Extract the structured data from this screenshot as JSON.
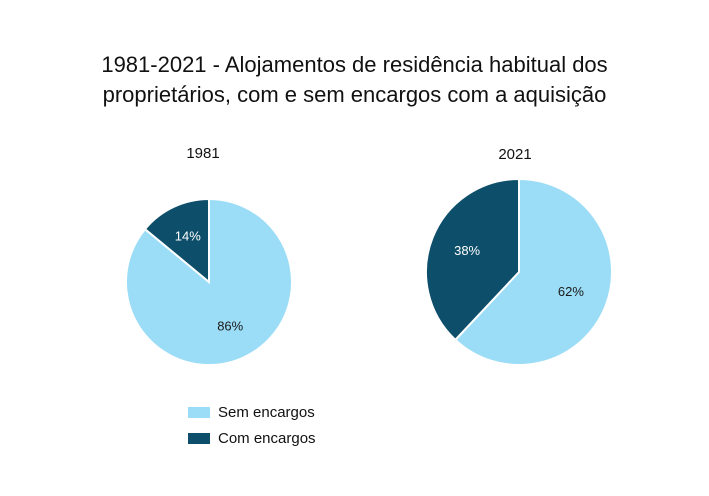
{
  "chart_data": {
    "type": "pie",
    "title_lines": [
      "1981-2021  - Alojamentos de residência habitual dos",
      "proprietários, com e sem encargos com a aquisição"
    ],
    "legend": [
      {
        "label": "Sem encargos",
        "color": "#9bdcf6"
      },
      {
        "label": "Com encargos",
        "color": "#0d4e6a"
      }
    ],
    "legend_position": "bottom-left",
    "pies": [
      {
        "title": "1981",
        "slices": [
          {
            "name": "Sem encargos",
            "value": 86,
            "label": "86%"
          },
          {
            "name": "Com encargos",
            "value": 14,
            "label": "14%"
          }
        ]
      },
      {
        "title": "2021",
        "slices": [
          {
            "name": "Sem encargos",
            "value": 62,
            "label": "62%"
          },
          {
            "name": "Com encargos",
            "value": 38,
            "label": "38%"
          }
        ]
      }
    ]
  }
}
